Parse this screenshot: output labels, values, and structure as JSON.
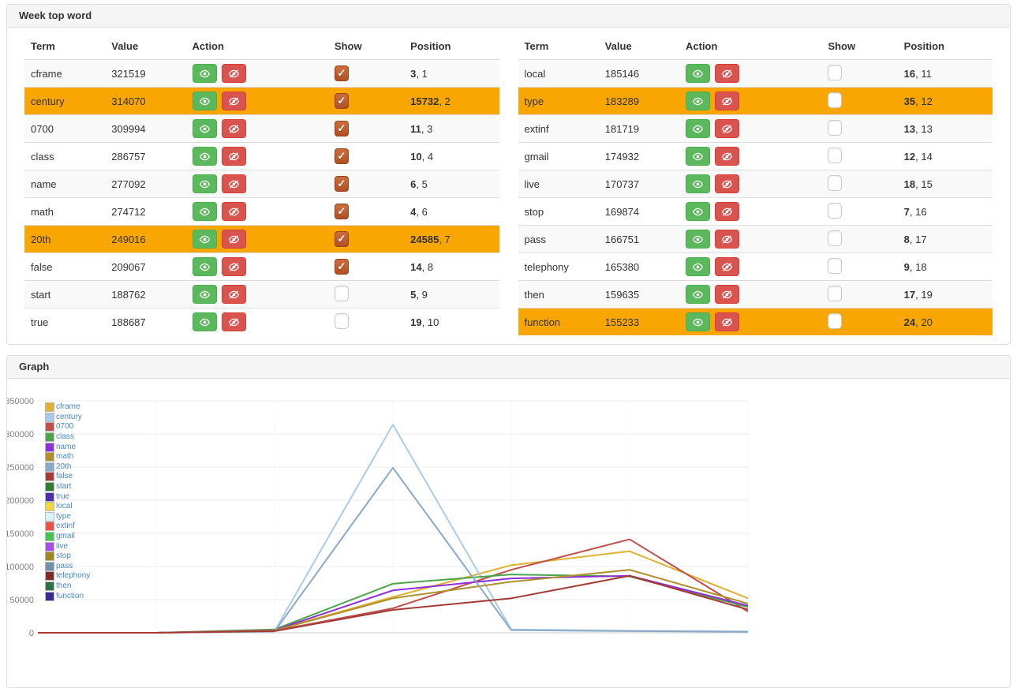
{
  "week_panel": {
    "title": "Week top word",
    "columns": [
      "Term",
      "Value",
      "Action",
      "Show",
      "Position"
    ],
    "tables": [
      {
        "rows": [
          {
            "term": "cframe",
            "value": "321519",
            "show": true,
            "highlight": false,
            "pos": [
              "3",
              "1"
            ]
          },
          {
            "term": "century",
            "value": "314070",
            "show": true,
            "highlight": true,
            "pos": [
              "15732",
              "2"
            ]
          },
          {
            "term": "0700",
            "value": "309994",
            "show": true,
            "highlight": false,
            "pos": [
              "11",
              "3"
            ]
          },
          {
            "term": "class",
            "value": "286757",
            "show": true,
            "highlight": false,
            "pos": [
              "10",
              "4"
            ]
          },
          {
            "term": "name",
            "value": "277092",
            "show": true,
            "highlight": false,
            "pos": [
              "6",
              "5"
            ]
          },
          {
            "term": "math",
            "value": "274712",
            "show": true,
            "highlight": false,
            "pos": [
              "4",
              "6"
            ]
          },
          {
            "term": "20th",
            "value": "249016",
            "show": true,
            "highlight": true,
            "pos": [
              "24585",
              "7"
            ]
          },
          {
            "term": "false",
            "value": "209067",
            "show": true,
            "highlight": false,
            "pos": [
              "14",
              "8"
            ]
          },
          {
            "term": "start",
            "value": "188762",
            "show": false,
            "highlight": false,
            "pos": [
              "5",
              "9"
            ]
          },
          {
            "term": "true",
            "value": "188687",
            "show": false,
            "highlight": false,
            "pos": [
              "19",
              "10"
            ]
          }
        ]
      },
      {
        "rows": [
          {
            "term": "local",
            "value": "185146",
            "show": false,
            "highlight": false,
            "pos": [
              "16",
              "11"
            ]
          },
          {
            "term": "type",
            "value": "183289",
            "show": false,
            "highlight": true,
            "pos": [
              "35",
              "12"
            ]
          },
          {
            "term": "extinf",
            "value": "181719",
            "show": false,
            "highlight": false,
            "pos": [
              "13",
              "13"
            ]
          },
          {
            "term": "gmail",
            "value": "174932",
            "show": false,
            "highlight": false,
            "pos": [
              "12",
              "14"
            ]
          },
          {
            "term": "live",
            "value": "170737",
            "show": false,
            "highlight": false,
            "pos": [
              "18",
              "15"
            ]
          },
          {
            "term": "stop",
            "value": "169874",
            "show": false,
            "highlight": false,
            "pos": [
              "7",
              "16"
            ]
          },
          {
            "term": "pass",
            "value": "166751",
            "show": false,
            "highlight": false,
            "pos": [
              "8",
              "17"
            ]
          },
          {
            "term": "telephony",
            "value": "165380",
            "show": false,
            "highlight": false,
            "pos": [
              "9",
              "18"
            ]
          },
          {
            "term": "then",
            "value": "159635",
            "show": false,
            "highlight": false,
            "pos": [
              "17",
              "19"
            ]
          },
          {
            "term": "function",
            "value": "155233",
            "show": false,
            "highlight": true,
            "pos": [
              "24",
              "20"
            ]
          }
        ]
      }
    ]
  },
  "graph_panel": {
    "title": "Graph"
  },
  "chart_data": {
    "type": "line",
    "num_points": 7,
    "x_axis_labels_visible": false,
    "ylim": [
      0,
      350000
    ],
    "yticks": [
      0,
      50000,
      100000,
      150000,
      200000,
      250000,
      300000,
      350000
    ],
    "grid": true,
    "legend_position": "top-left",
    "series": [
      {
        "name": "cframe",
        "color": "#E0B232",
        "plotted": true,
        "values": [
          0,
          0,
          4000,
          54000,
          102000,
          123000,
          52000
        ]
      },
      {
        "name": "century",
        "color": "#A9CBEA",
        "plotted": true,
        "values": [
          0,
          0,
          2500,
          314070,
          5000,
          3000,
          2000
        ]
      },
      {
        "name": "0700",
        "color": "#C0504D",
        "plotted": true,
        "values": [
          0,
          0,
          3000,
          37000,
          95000,
          141000,
          32000
        ]
      },
      {
        "name": "class",
        "color": "#4AA54A",
        "plotted": true,
        "values": [
          0,
          0,
          5000,
          74000,
          88000,
          85000,
          39000
        ]
      },
      {
        "name": "name",
        "color": "#8E30D8",
        "plotted": true,
        "values": [
          0,
          0,
          4000,
          64000,
          82000,
          86000,
          41000
        ]
      },
      {
        "name": "math",
        "color": "#B08F2A",
        "plotted": true,
        "values": [
          0,
          0,
          3500,
          52000,
          77000,
          95000,
          44000
        ]
      },
      {
        "name": "20th",
        "color": "#89A9C9",
        "plotted": true,
        "values": [
          0,
          0,
          2000,
          249016,
          4000,
          2500,
          1500
        ]
      },
      {
        "name": "false",
        "color": "#A53A35",
        "plotted": true,
        "values": [
          0,
          0,
          2500,
          34500,
          52000,
          86000,
          35000
        ]
      },
      {
        "name": "start",
        "color": "#2E7D32",
        "plotted": false,
        "values": []
      },
      {
        "name": "true",
        "color": "#4B31A8",
        "plotted": false,
        "values": []
      },
      {
        "name": "local",
        "color": "#F0D63C",
        "plotted": false,
        "values": []
      },
      {
        "name": "type",
        "color": "#D9F3F8",
        "plotted": false,
        "values": []
      },
      {
        "name": "extinf",
        "color": "#E85348",
        "plotted": false,
        "values": []
      },
      {
        "name": "gmail",
        "color": "#47C351",
        "plotted": false,
        "values": []
      },
      {
        "name": "live",
        "color": "#A84FE8",
        "plotted": false,
        "values": []
      },
      {
        "name": "stop",
        "color": "#A08623",
        "plotted": false,
        "values": []
      },
      {
        "name": "pass",
        "color": "#7090A8",
        "plotted": false,
        "values": []
      },
      {
        "name": "telephony",
        "color": "#7E2D2D",
        "plotted": false,
        "values": []
      },
      {
        "name": "then",
        "color": "#2E7046",
        "plotted": false,
        "values": []
      },
      {
        "name": "function",
        "color": "#3B2B8E",
        "plotted": false,
        "values": []
      }
    ]
  },
  "icons": {
    "show_button_icon": "eye-icon",
    "hide_button_icon": "eye-slash-icon",
    "checkbox_check_glyph": "✓"
  },
  "colors": {
    "row_highlight": "#F9A602",
    "row_stripe": "#F9F9F9",
    "show_button": "#5CB85C",
    "hide_button": "#D9534F",
    "checkbox_checked": "#B14F24",
    "panel_header_bg": "#F5F5F5",
    "panel_border": "#DDDDDD",
    "legend_text": "#4A87C8",
    "axis_label_text": "#808080"
  }
}
